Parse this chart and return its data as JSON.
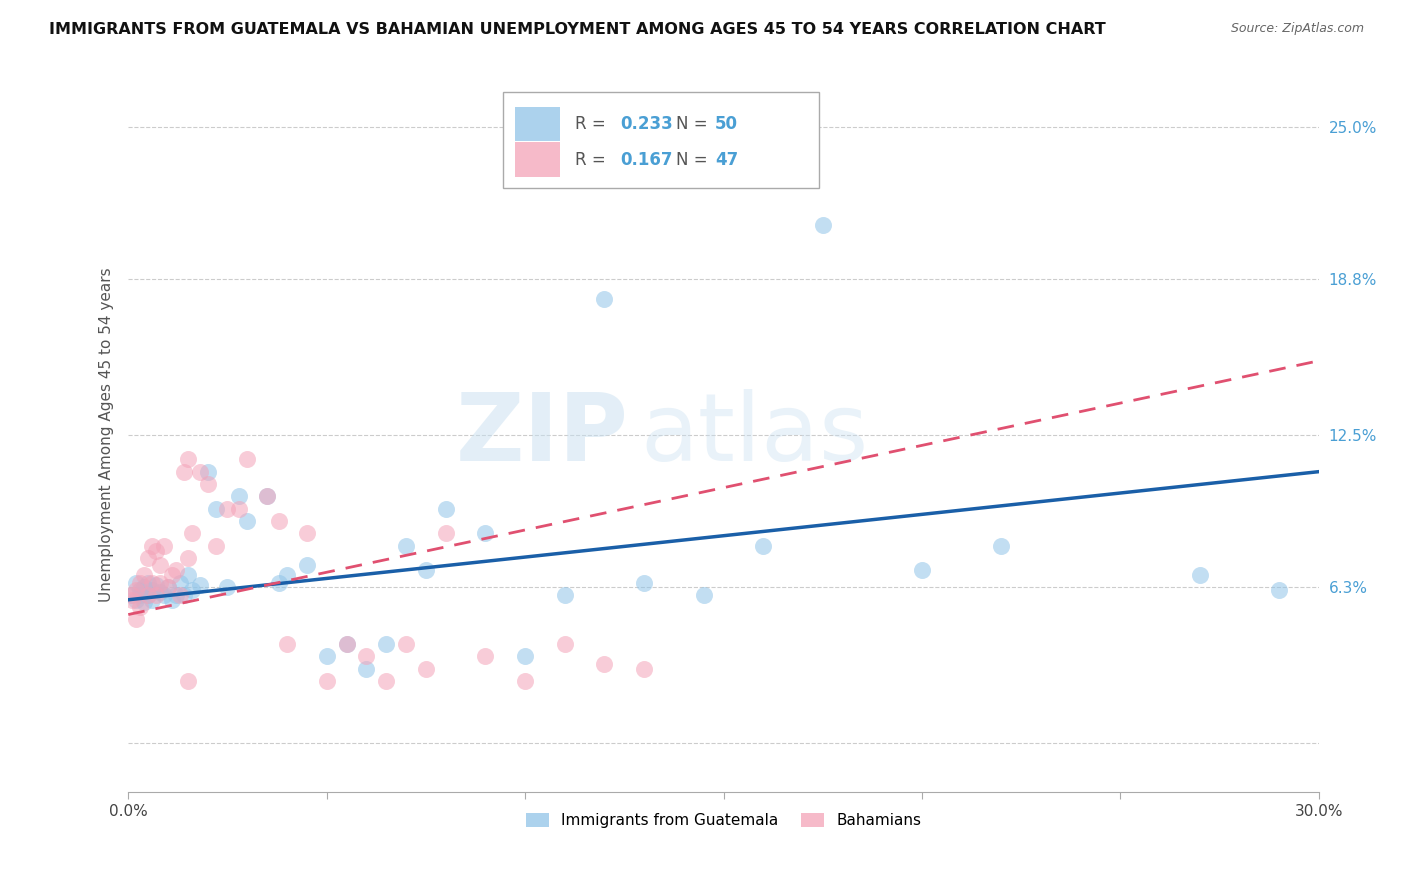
{
  "title": "IMMIGRANTS FROM GUATEMALA VS BAHAMIAN UNEMPLOYMENT AMONG AGES 45 TO 54 YEARS CORRELATION CHART",
  "source": "Source: ZipAtlas.com",
  "ylabel": "Unemployment Among Ages 45 to 54 years",
  "legend_label1": "Immigrants from Guatemala",
  "legend_label2": "Bahamians",
  "r1": 0.233,
  "n1": 50,
  "r2": 0.167,
  "n2": 47,
  "color1": "#90c4e8",
  "color2": "#f4a3b8",
  "line_color1": "#1a5fa8",
  "line_color2": "#e05070",
  "xmin": 0.0,
  "xmax": 0.3,
  "ymin": -0.02,
  "ymax": 0.27,
  "ytick_vals": [
    0.0,
    0.063,
    0.125,
    0.188,
    0.25
  ],
  "ytick_labels": [
    "",
    "6.3%",
    "12.5%",
    "18.8%",
    "25.0%"
  ],
  "xtick_vals": [
    0.0,
    0.05,
    0.1,
    0.15,
    0.2,
    0.25,
    0.3
  ],
  "xtick_labels": [
    "0.0%",
    "",
    "",
    "",
    "",
    "",
    "30.0%"
  ],
  "watermark_zip": "ZIP",
  "watermark_atlas": "atlas",
  "scatter1_x": [
    0.001,
    0.002,
    0.002,
    0.003,
    0.003,
    0.004,
    0.004,
    0.005,
    0.005,
    0.006,
    0.006,
    0.007,
    0.008,
    0.009,
    0.01,
    0.011,
    0.012,
    0.013,
    0.014,
    0.015,
    0.016,
    0.018,
    0.02,
    0.022,
    0.025,
    0.028,
    0.03,
    0.035,
    0.038,
    0.04,
    0.045,
    0.05,
    0.055,
    0.06,
    0.065,
    0.07,
    0.075,
    0.08,
    0.09,
    0.1,
    0.11,
    0.12,
    0.13,
    0.145,
    0.16,
    0.175,
    0.2,
    0.22,
    0.27,
    0.29
  ],
  "scatter1_y": [
    0.06,
    0.065,
    0.058,
    0.062,
    0.06,
    0.063,
    0.057,
    0.065,
    0.06,
    0.062,
    0.058,
    0.064,
    0.061,
    0.06,
    0.063,
    0.058,
    0.06,
    0.065,
    0.06,
    0.068,
    0.062,
    0.064,
    0.11,
    0.095,
    0.063,
    0.1,
    0.09,
    0.1,
    0.065,
    0.068,
    0.072,
    0.035,
    0.04,
    0.03,
    0.04,
    0.08,
    0.07,
    0.095,
    0.085,
    0.035,
    0.06,
    0.18,
    0.065,
    0.06,
    0.08,
    0.21,
    0.07,
    0.08,
    0.068,
    0.062
  ],
  "scatter2_x": [
    0.001,
    0.001,
    0.002,
    0.002,
    0.003,
    0.003,
    0.004,
    0.005,
    0.005,
    0.006,
    0.006,
    0.007,
    0.007,
    0.008,
    0.008,
    0.009,
    0.01,
    0.011,
    0.012,
    0.013,
    0.014,
    0.015,
    0.015,
    0.016,
    0.018,
    0.02,
    0.022,
    0.025,
    0.028,
    0.03,
    0.035,
    0.038,
    0.04,
    0.045,
    0.05,
    0.055,
    0.06,
    0.065,
    0.07,
    0.075,
    0.08,
    0.09,
    0.1,
    0.11,
    0.12,
    0.13,
    0.015
  ],
  "scatter2_y": [
    0.06,
    0.058,
    0.062,
    0.05,
    0.065,
    0.055,
    0.068,
    0.075,
    0.06,
    0.08,
    0.065,
    0.078,
    0.06,
    0.072,
    0.065,
    0.08,
    0.063,
    0.068,
    0.07,
    0.06,
    0.11,
    0.075,
    0.115,
    0.085,
    0.11,
    0.105,
    0.08,
    0.095,
    0.095,
    0.115,
    0.1,
    0.09,
    0.04,
    0.085,
    0.025,
    0.04,
    0.035,
    0.025,
    0.04,
    0.03,
    0.085,
    0.035,
    0.025,
    0.04,
    0.032,
    0.03,
    0.025
  ],
  "line1_x0": 0.0,
  "line1_x1": 0.3,
  "line1_y0": 0.058,
  "line1_y1": 0.11,
  "line2_x0": 0.0,
  "line2_x1": 0.3,
  "line2_y0": 0.052,
  "line2_y1": 0.155
}
